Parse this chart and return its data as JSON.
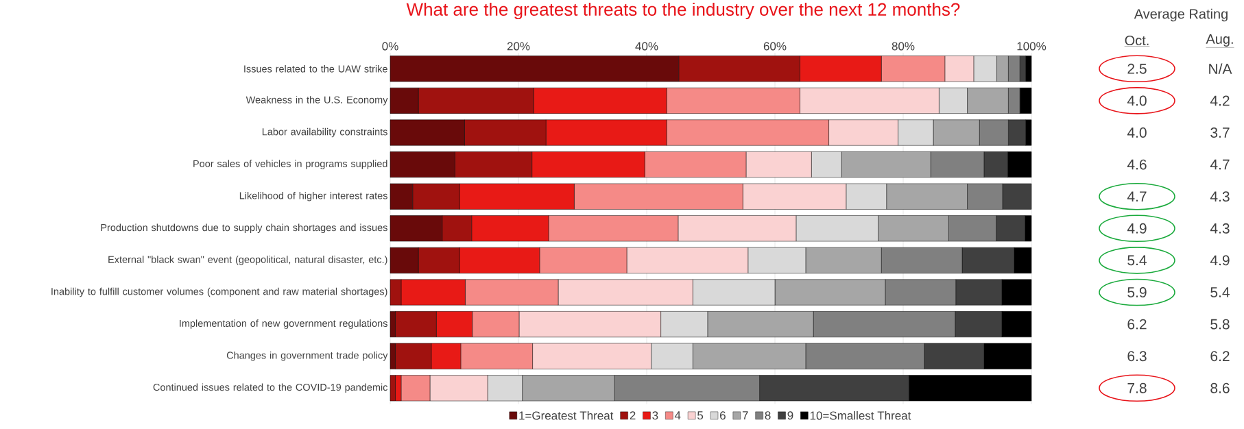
{
  "chart_data": [
    {
      "type": "bar",
      "orientation": "horizontal",
      "stacked": true,
      "title": "What are the greatest threats to the industry over the next 12 months?",
      "categories": [
        "Issues related to the UAW strike",
        "Weakness in the U.S. Economy",
        "Labor availability constraints",
        "Poor sales of vehicles in programs supplied",
        "Likelihood of higher interest rates",
        "Production shutdowns due to supply chain shortages and issues",
        "External \"black swan\" event (geopolitical, natural disaster, etc.)",
        "Inability to fulfill customer volumes (component and raw material shortages)",
        "Implementation of new government regulations",
        "Changes in government trade policy",
        "Continued issues related to the COVID-19 pandemic"
      ],
      "series": [
        {
          "name": "1=Greatest Threat",
          "color": "#690a0a",
          "values": [
            45.0,
            4.4,
            11.6,
            10.1,
            3.5,
            8.1,
            4.4,
            0,
            0.8,
            0.8,
            0
          ]
        },
        {
          "name": "2",
          "color": "#a0120f",
          "values": [
            18.9,
            18.0,
            12.7,
            12.0,
            7.3,
            4.6,
            6.4,
            1.7,
            6.4,
            5.6,
            0.8
          ]
        },
        {
          "name": "3",
          "color": "#e81a16",
          "values": [
            12.7,
            20.7,
            18.8,
            17.6,
            17.9,
            12.0,
            12.5,
            10.0,
            5.6,
            4.6,
            0.9
          ]
        },
        {
          "name": "4",
          "color": "#f58a87",
          "values": [
            9.9,
            20.8,
            25.3,
            15.8,
            26.3,
            20.2,
            13.6,
            14.5,
            7.3,
            11.2,
            4.5
          ]
        },
        {
          "name": "5",
          "color": "#fad2d2",
          "values": [
            4.5,
            21.7,
            10.8,
            10.2,
            16.1,
            18.4,
            18.9,
            21.0,
            22.1,
            18.5,
            9.0
          ]
        },
        {
          "name": "6",
          "color": "#d9d9d9",
          "values": [
            3.6,
            4.4,
            5.5,
            4.7,
            6.3,
            12.8,
            9.0,
            12.8,
            7.3,
            6.5,
            5.4
          ]
        },
        {
          "name": "7",
          "color": "#a6a6a6",
          "values": [
            1.8,
            6.4,
            7.2,
            13.9,
            12.6,
            11.0,
            11.8,
            17.2,
            16.5,
            17.6,
            14.4
          ]
        },
        {
          "name": "8",
          "color": "#808080",
          "values": [
            1.8,
            1.8,
            4.5,
            8.3,
            5.5,
            7.4,
            12.6,
            11.0,
            22.1,
            18.5,
            22.6
          ]
        },
        {
          "name": "9",
          "color": "#404040",
          "values": [
            0.9,
            0,
            2.7,
            3.7,
            4.5,
            4.5,
            8.1,
            7.2,
            7.3,
            9.3,
            23.3
          ]
        },
        {
          "name": "10=Smallest Threat",
          "color": "#000000",
          "values": [
            0.9,
            1.8,
            0.9,
            3.7,
            0,
            1.0,
            2.7,
            4.6,
            4.6,
            7.4,
            19.1
          ]
        }
      ],
      "xlim": [
        0,
        100
      ],
      "xticks": [
        {
          "value": 0,
          "label": "0%"
        },
        {
          "value": 20,
          "label": "20%"
        },
        {
          "value": 40,
          "label": "40%"
        },
        {
          "value": 60,
          "label": "60%"
        },
        {
          "value": 80,
          "label": "80%"
        },
        {
          "value": 100,
          "label": "100%"
        }
      ],
      "grid": "x",
      "legend": "bottom"
    },
    {
      "type": "other",
      "title": "Average Rating",
      "annotations": [
        "Oct.",
        "Aug.",
        "2.5",
        "N/A",
        "4.0",
        "4.2",
        "4.0",
        "3.7",
        "4.6",
        "4.7",
        "4.7",
        "4.3",
        "4.9",
        "4.3",
        "5.4",
        "4.9",
        "5.9",
        "5.4",
        "6.2",
        "5.8",
        "6.3",
        "6.2",
        "7.8",
        "8.6"
      ],
      "colors": [
        "#e8141a",
        "#e8141a",
        null,
        null,
        "#1aaa3c",
        "#1aaa3c",
        "#1aaa3c",
        "#1aaa3c",
        null,
        null,
        "#e8141a"
      ]
    }
  ]
}
